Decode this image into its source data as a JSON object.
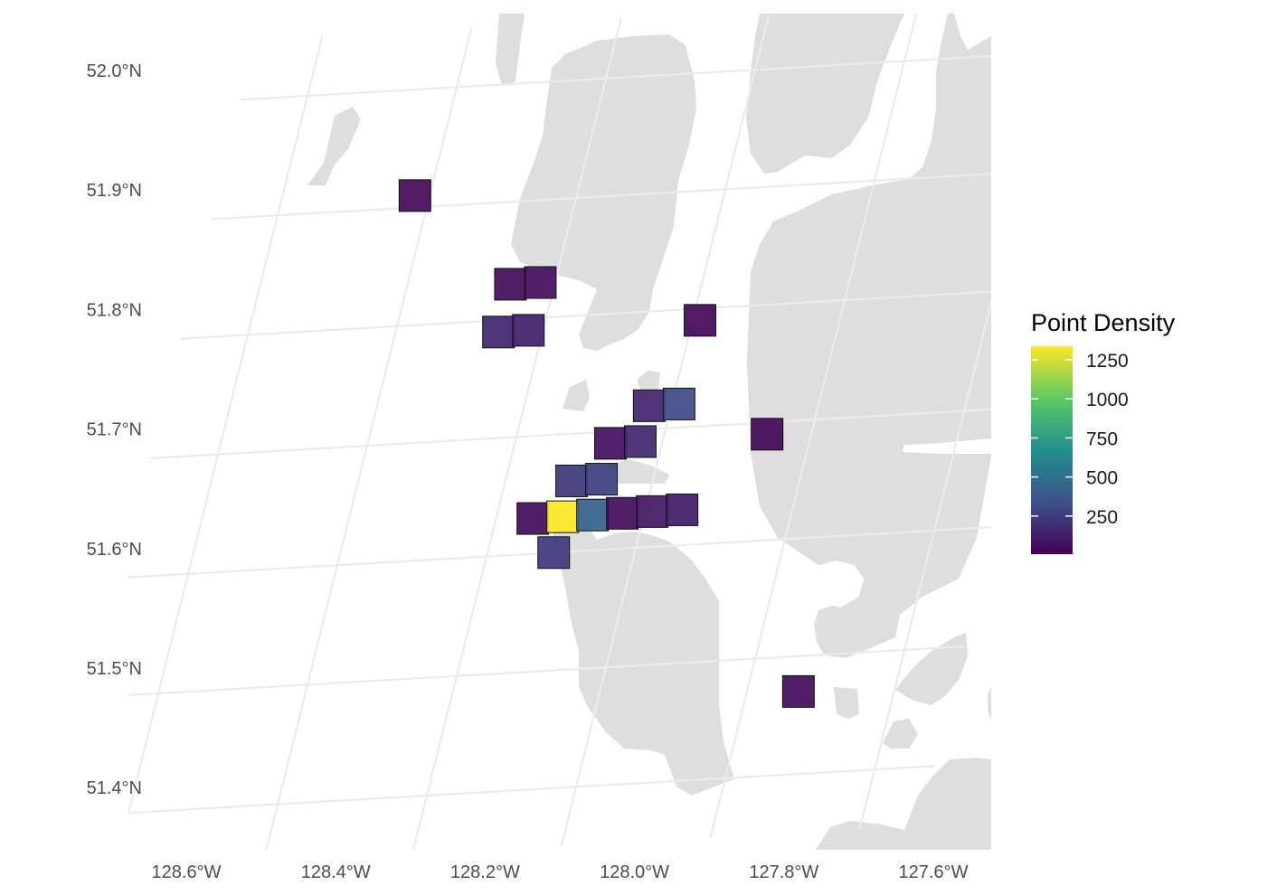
{
  "lon_labels": [
    "128.6°W",
    "128.4°W",
    "128.2°W",
    "128.0°W",
    "127.8°W",
    "127.6°W"
  ],
  "lat_labels": [
    "52.0°N",
    "51.9°N",
    "51.8°N",
    "51.7°N",
    "51.6°N",
    "51.5°N",
    "51.4°N"
  ],
  "legend": {
    "title": "Point Density",
    "breaks": [
      "1250",
      "1000",
      "750",
      "500",
      "250"
    ],
    "colors": [
      "#440154",
      "#3b528b",
      "#21908c",
      "#5dc963",
      "#fde725"
    ]
  },
  "land_color": "#dedede",
  "grid_cells": [
    {
      "lon": -128.42,
      "lat": 51.91,
      "density": 30
    },
    {
      "lon": -128.26,
      "lat": 51.83,
      "density": 40
    },
    {
      "lon": -128.22,
      "lat": 51.83,
      "density": 50
    },
    {
      "lon": -128.26,
      "lat": 51.79,
      "density": 150
    },
    {
      "lon": -128.22,
      "lat": 51.79,
      "density": 120
    },
    {
      "lon": -127.99,
      "lat": 51.79,
      "density": 20
    },
    {
      "lon": -128.03,
      "lat": 51.72,
      "density": 140
    },
    {
      "lon": -127.99,
      "lat": 51.72,
      "density": 300
    },
    {
      "lon": -128.07,
      "lat": 51.69,
      "density": 60
    },
    {
      "lon": -128.03,
      "lat": 51.69,
      "density": 160
    },
    {
      "lon": -127.86,
      "lat": 51.69,
      "density": 30
    },
    {
      "lon": -128.11,
      "lat": 51.66,
      "density": 220
    },
    {
      "lon": -128.07,
      "lat": 51.66,
      "density": 260
    },
    {
      "lon": -128.15,
      "lat": 51.63,
      "density": 40
    },
    {
      "lon": -128.11,
      "lat": 51.63,
      "density": 1350
    },
    {
      "lon": -128.07,
      "lat": 51.63,
      "density": 430
    },
    {
      "lon": -128.03,
      "lat": 51.63,
      "density": 50
    },
    {
      "lon": -127.99,
      "lat": 51.63,
      "density": 90
    },
    {
      "lon": -127.95,
      "lat": 51.63,
      "density": 110
    },
    {
      "lon": -128.11,
      "lat": 51.6,
      "density": 230
    },
    {
      "lon": -127.73,
      "lat": 51.47,
      "density": 40
    }
  ]
}
